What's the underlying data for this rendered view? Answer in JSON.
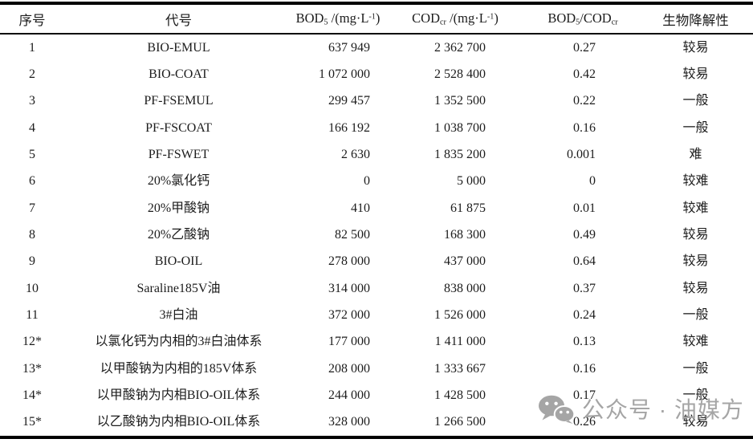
{
  "colors": {
    "background": "#ffffff",
    "text": "#1c1c1c",
    "rule": "#000000",
    "watermark": "#a5a5a5"
  },
  "table": {
    "headers": [
      {
        "id": "no",
        "label": [
          {
            "t": "序号"
          }
        ]
      },
      {
        "id": "code",
        "label": [
          {
            "t": "代号"
          }
        ]
      },
      {
        "id": "bod",
        "label": [
          {
            "t": "BOD"
          },
          {
            "t": "5",
            "s": "sub"
          },
          {
            "t": " /(mg·L"
          },
          {
            "t": "-1",
            "s": "sup"
          },
          {
            "t": ")"
          }
        ]
      },
      {
        "id": "cod",
        "label": [
          {
            "t": "COD"
          },
          {
            "t": "cr",
            "s": "sub"
          },
          {
            "t": " /(mg·L"
          },
          {
            "t": "-1",
            "s": "sup"
          },
          {
            "t": ")"
          }
        ]
      },
      {
        "id": "ratio",
        "label": [
          {
            "t": "BOD"
          },
          {
            "t": "5",
            "s": "sub"
          },
          {
            "t": "/COD"
          },
          {
            "t": "cr",
            "s": "sub"
          }
        ]
      },
      {
        "id": "bio",
        "label": [
          {
            "t": "生物降解性"
          }
        ]
      }
    ],
    "rows": [
      [
        "1",
        "BIO-EMUL",
        "637 949",
        "2 362 700",
        "0.27",
        "较易"
      ],
      [
        "2",
        "BIO-COAT",
        "1 072 000",
        "2 528 400",
        "0.42",
        "较易"
      ],
      [
        "3",
        "PF-FSEMUL",
        "299 457",
        "1 352 500",
        "0.22",
        "一般"
      ],
      [
        "4",
        "PF-FSCOAT",
        "166 192",
        "1 038 700",
        "0.16",
        "一般"
      ],
      [
        "5",
        "PF-FSWET",
        "2 630",
        "1 835 200",
        "0.001",
        "难"
      ],
      [
        "6",
        "20%氯化钙",
        "0",
        "5 000",
        "0",
        "较难"
      ],
      [
        "7",
        "20%甲酸钠",
        "410",
        "61 875",
        "0.01",
        "较难"
      ],
      [
        "8",
        "20%乙酸钠",
        "82 500",
        "168 300",
        "0.49",
        "较易"
      ],
      [
        "9",
        "BIO-OIL",
        "278 000",
        "437 000",
        "0.64",
        "较易"
      ],
      [
        "10",
        "Saraline185V油",
        "314 000",
        "838 000",
        "0.37",
        "较易"
      ],
      [
        "11",
        "3#白油",
        "372 000",
        "1 526 000",
        "0.24",
        "一般"
      ],
      [
        "12*",
        "以氯化钙为内相的3#白油体系",
        "177 000",
        "1 411 000",
        "0.13",
        "较难"
      ],
      [
        "13*",
        "以甲酸钠为内相的185V体系",
        "208 000",
        "1 333 667",
        "0.16",
        "一般"
      ],
      [
        "14*",
        "以甲酸钠为内相BIO-OIL体系",
        "244 000",
        "1 428 500",
        "0.17",
        "一般"
      ],
      [
        "15*",
        "以乙酸钠为内相BIO-OIL体系",
        "328 000",
        "1 266 500",
        "0.26",
        "较易"
      ]
    ]
  },
  "watermark": {
    "icon": "wechat-logo",
    "text": "公众号 · 油媒方"
  }
}
